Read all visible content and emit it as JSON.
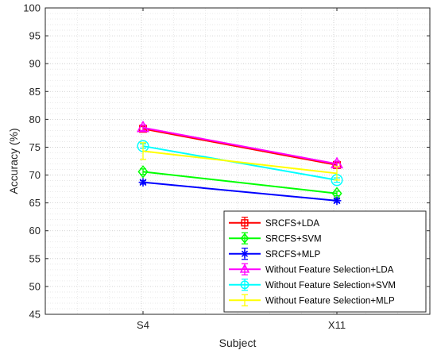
{
  "chart_data": {
    "type": "line",
    "xlabel": "Subject",
    "ylabel": "Accuracy (%)",
    "categories": [
      "S4",
      "X11"
    ],
    "ylim": [
      45,
      100
    ],
    "yticks": [
      45,
      50,
      55,
      60,
      65,
      70,
      75,
      80,
      85,
      90,
      95,
      100
    ],
    "grid": "dotted major and minor",
    "legend_position": "bottom-right",
    "series": [
      {
        "name": "SRCFS+LDA",
        "values": [
          78.3,
          71.8
        ],
        "error": [
          0.4,
          0.4
        ],
        "color": "#ff0000",
        "marker": "square"
      },
      {
        "name": "SRCFS+SVM",
        "values": [
          70.6,
          66.7
        ],
        "error": [
          0.5,
          0.4
        ],
        "color": "#00ff00",
        "marker": "diamond"
      },
      {
        "name": "SRCFS+MLP",
        "values": [
          68.7,
          65.4
        ],
        "error": [
          0.3,
          0.3
        ],
        "color": "#0000ff",
        "marker": "asterisk"
      },
      {
        "name": "Without Feature Selection+LDA",
        "values": [
          78.5,
          72.0
        ],
        "error": [
          0.5,
          0.5
        ],
        "color": "#ff00ff",
        "marker": "triangle"
      },
      {
        "name": "Without Feature Selection+SVM",
        "values": [
          75.2,
          69.1
        ],
        "error": [
          0.4,
          0.4
        ],
        "color": "#00ffff",
        "marker": "circle"
      },
      {
        "name": "Without Feature Selection+MLP",
        "values": [
          74.3,
          70.3
        ],
        "error": [
          1.5,
          1.2
        ],
        "color": "#ffff00",
        "marker": "none"
      }
    ]
  }
}
